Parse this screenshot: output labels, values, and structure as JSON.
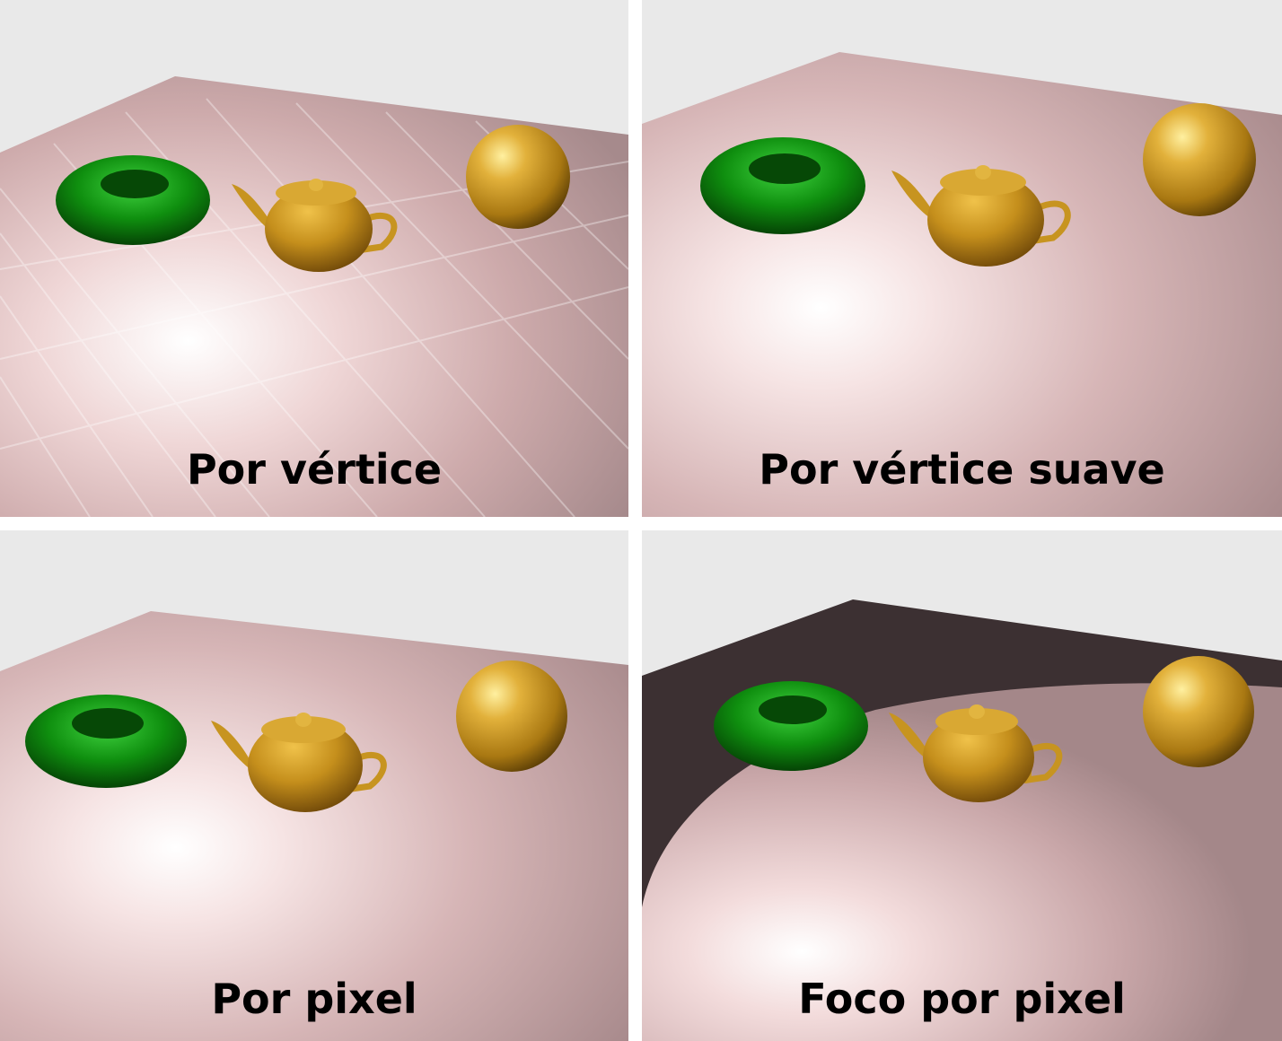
{
  "panels": [
    {
      "caption": "Por vértice",
      "shading": "flat-faceted"
    },
    {
      "caption": "Por vértice suave",
      "shading": "smooth-vertex"
    },
    {
      "caption": "Por pixel",
      "shading": "per-pixel"
    },
    {
      "caption": "Foco por pixel",
      "shading": "spotlight-per-pixel"
    }
  ],
  "scene_objects": [
    "torus-green",
    "teapot-gold",
    "sphere-gold",
    "floor-pink"
  ],
  "colors": {
    "background": "#e9e9e9",
    "floor": "#c9a4a6",
    "floor_highlight": "#ffffff",
    "torus": "#0d8a0d",
    "gold": "#d4a020",
    "spot_dark": "#3c3032"
  }
}
